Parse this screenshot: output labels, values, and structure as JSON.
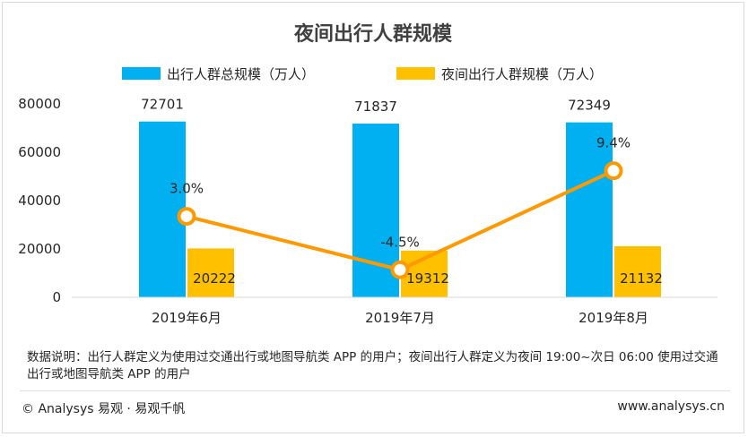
{
  "title": "夜间出行人群规模",
  "legend": {
    "series1": "出行人群总规模（万人）",
    "series2": "夜间出行人群规模（万人）"
  },
  "colors": {
    "total": "#00b0f0",
    "night": "#ffc000",
    "line": "#ff9900"
  },
  "chart_data": {
    "type": "bar",
    "categories": [
      "2019年6月",
      "2019年7月",
      "2019年8月"
    ],
    "series": [
      {
        "name": "出行人群总规模（万人）",
        "values": [
          72701,
          71837,
          72349
        ],
        "labels": [
          "72701",
          "71837",
          "72349"
        ]
      },
      {
        "name": "夜间出行人群规模（万人）",
        "values": [
          20222,
          19312,
          21132
        ],
        "labels": [
          "20222",
          "19312",
          "21132"
        ]
      }
    ],
    "growth": {
      "values": [
        3.0,
        -4.5,
        9.4
      ],
      "labels": [
        "3.0%",
        "-4.5%",
        "9.4%"
      ]
    },
    "yticks": [
      "80000",
      "60000",
      "40000",
      "20000",
      "0"
    ],
    "ylim": [
      0,
      80000
    ],
    "legend_position": "top"
  },
  "note": "数据说明：出行人群定义为使用过交通出行或地图导航类 APP 的用户；夜间出行人群定义为夜间 19:00~次日 06:00 使用过交通出行或地图导航类 APP 的用户",
  "footer": {
    "left": "© Analysys 易观 · 易观千帆",
    "right": "www.analysys.cn"
  }
}
